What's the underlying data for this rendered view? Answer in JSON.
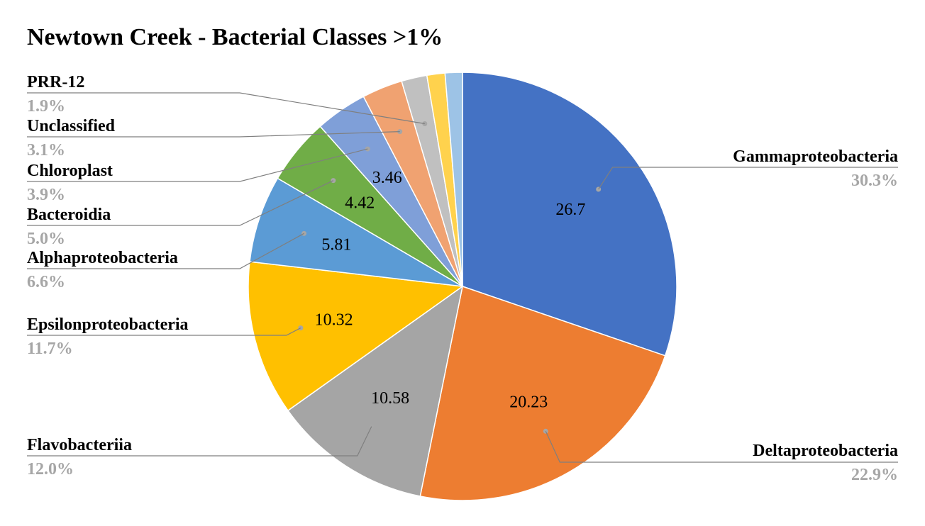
{
  "chart_data": {
    "type": "pie",
    "title": "Newtown Creek - Bacterial Classes >1%",
    "slices": [
      {
        "name": "Gammaproteobacteria",
        "value": 26.7,
        "percent_label": "30.3%",
        "value_label": "26.7",
        "color": "#4472c4"
      },
      {
        "name": "Deltaproteobacteria",
        "value": 20.23,
        "percent_label": "22.9%",
        "value_label": "20.23",
        "color": "#ed7d31"
      },
      {
        "name": "Flavobacteriia",
        "value": 10.58,
        "percent_label": "12.0%",
        "value_label": "10.58",
        "color": "#a5a5a5"
      },
      {
        "name": "Epsilonproteobacteria",
        "value": 10.32,
        "percent_label": "11.7%",
        "value_label": "10.32",
        "color": "#ffc000"
      },
      {
        "name": "Alphaproteobacteria",
        "value": 5.81,
        "percent_label": "6.6%",
        "value_label": "5.81",
        "color": "#5b9bd5"
      },
      {
        "name": "Bacteroidia",
        "value": 4.42,
        "percent_label": "5.0%",
        "value_label": "4.42",
        "color": "#70ad47"
      },
      {
        "name": "Chloroplast",
        "value": 3.46,
        "percent_label": "3.9%",
        "value_label": "3.46",
        "color": "#7f9fd8"
      },
      {
        "name": "Unclassified",
        "value": 2.7,
        "percent_label": "3.1%",
        "value_label": "",
        "color": "#f0a271"
      },
      {
        "name": "PRR-12",
        "value": 1.7,
        "percent_label": "1.9%",
        "value_label": "",
        "color": "#c0c0c0"
      },
      {
        "name": "",
        "value": 1.2,
        "percent_label": "",
        "value_label": "",
        "color": "#ffd24d"
      },
      {
        "name": "",
        "value": 1.15,
        "percent_label": "",
        "value_label": "",
        "color": "#9dc3e6"
      }
    ]
  }
}
